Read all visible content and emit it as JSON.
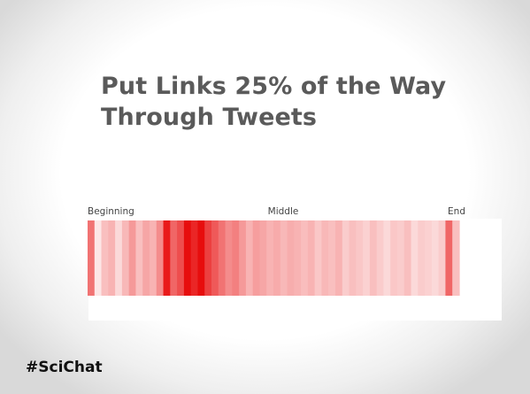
{
  "slide": {
    "title_line1": "Put Links 25% of the Way",
    "title_line2": "Through Tweets",
    "hashtag": "#SciChat"
  },
  "chart_data": {
    "type": "heatmap",
    "title": "Put Links 25% of the Way Through Tweets",
    "xlabel": "",
    "ylabel": "",
    "x_tick_labels": [
      "Beginning",
      "Middle",
      "End"
    ],
    "x_tick_positions": [
      0.0,
      0.5,
      1.0
    ],
    "xlim": [
      0,
      1
    ],
    "color_low": "#ffffff",
    "color_high": "#e60000",
    "legend": "none",
    "grid": false,
    "stripes": [
      0.55,
      0.1,
      0.25,
      0.3,
      0.15,
      0.28,
      0.4,
      0.25,
      0.35,
      0.3,
      0.45,
      0.9,
      0.6,
      0.7,
      0.95,
      0.85,
      0.95,
      0.75,
      0.65,
      0.55,
      0.45,
      0.5,
      0.4,
      0.3,
      0.38,
      0.35,
      0.3,
      0.33,
      0.28,
      0.32,
      0.3,
      0.26,
      0.3,
      0.22,
      0.28,
      0.25,
      0.3,
      0.2,
      0.25,
      0.22,
      0.18,
      0.25,
      0.2,
      0.15,
      0.22,
      0.2,
      0.25,
      0.15,
      0.2,
      0.18,
      0.15,
      0.2,
      0.6,
      0.25
    ]
  }
}
